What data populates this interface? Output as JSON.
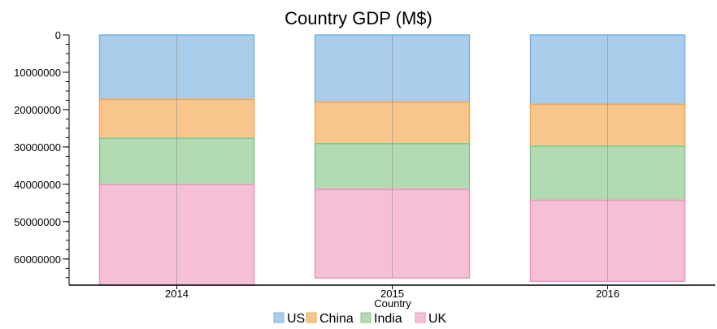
{
  "chart_data": {
    "type": "bar",
    "stacked": true,
    "title": "Country GDP (M$)",
    "xlabel": "Country",
    "ylabel": "",
    "y_axis_inverted": true,
    "ylim": [
      0,
      67000000
    ],
    "yticks": [
      0,
      10000000,
      20000000,
      30000000,
      40000000,
      50000000,
      60000000
    ],
    "categories": [
      "2014",
      "2015",
      "2016"
    ],
    "series": [
      {
        "name": "US",
        "values": [
          17300000,
          18000000,
          18600000
        ],
        "color": "#a9cdeb",
        "stroke": "#7fb3dd"
      },
      {
        "name": "China",
        "values": [
          10400000,
          11100000,
          11200000
        ],
        "color": "#f8c68a",
        "stroke": "#f0a85c"
      },
      {
        "name": "India",
        "values": [
          12400000,
          12300000,
          14500000
        ],
        "color": "#b2dbb3",
        "stroke": "#88c28c"
      },
      {
        "name": "UK",
        "values": [
          27400000,
          23700000,
          21700000
        ],
        "color": "#f5bfd6",
        "stroke": "#ec96bd"
      }
    ],
    "grid": false,
    "legend_position": "bottom"
  }
}
